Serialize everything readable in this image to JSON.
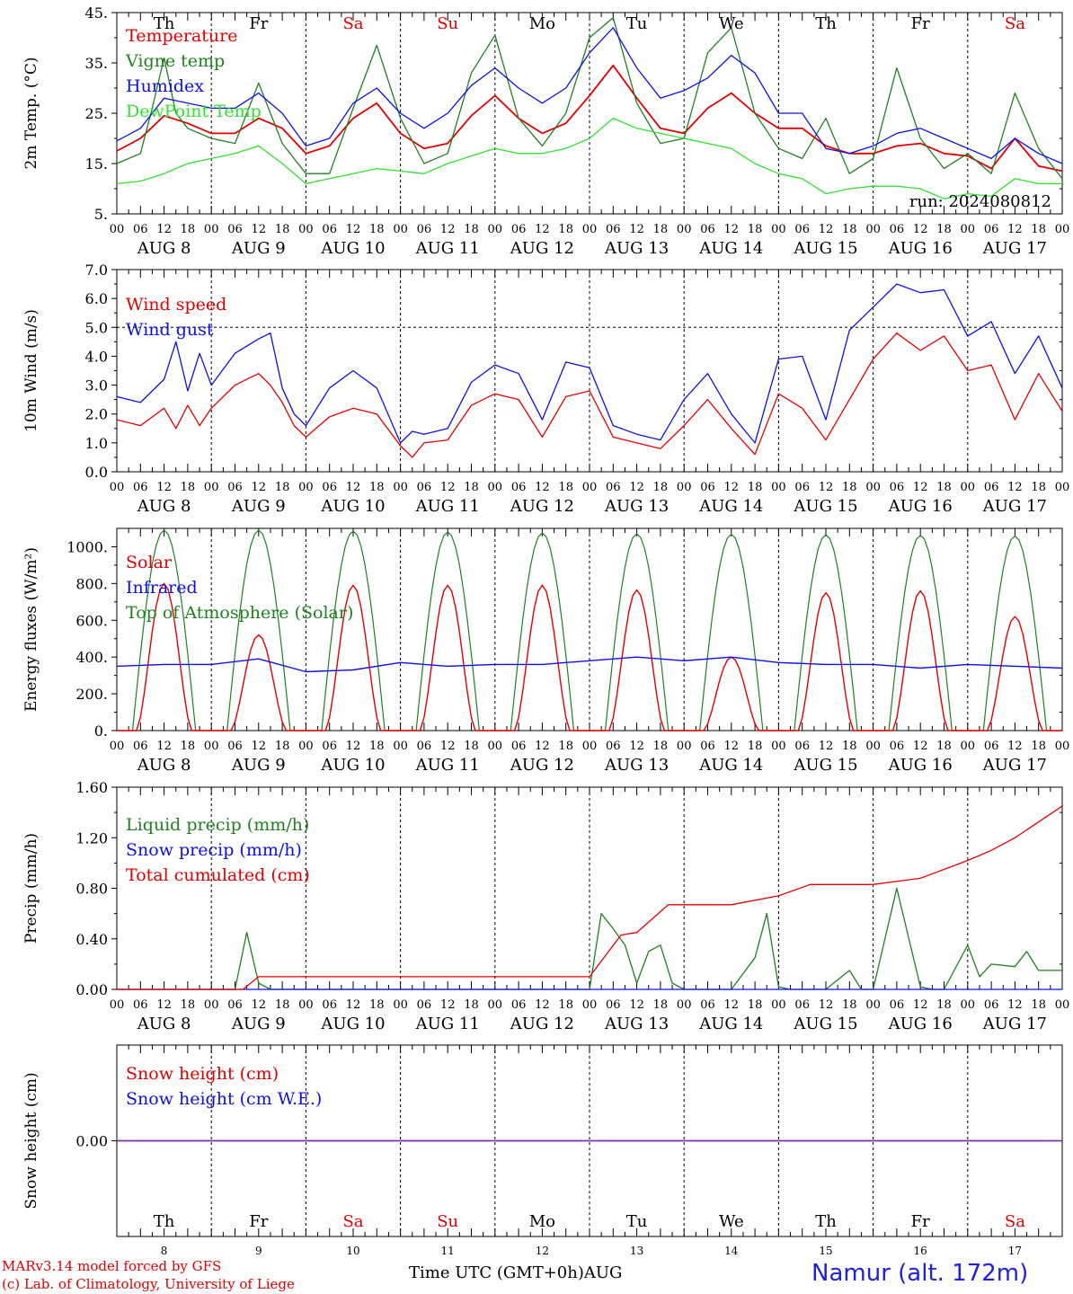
{
  "days": [
    {
      "name": "Th",
      "date": "8",
      "weekend": false
    },
    {
      "name": "Fr",
      "date": "9",
      "weekend": false
    },
    {
      "name": "Sa",
      "date": "10",
      "weekend": true
    },
    {
      "name": "Su",
      "date": "11",
      "weekend": true
    },
    {
      "name": "Mo",
      "date": "12",
      "weekend": false
    },
    {
      "name": "Tu",
      "date": "13",
      "weekend": false
    },
    {
      "name": "We",
      "date": "14",
      "weekend": false
    },
    {
      "name": "Th",
      "date": "15",
      "weekend": false
    },
    {
      "name": "Fr",
      "date": "16",
      "weekend": false
    },
    {
      "name": "Sa",
      "date": "17",
      "weekend": true
    }
  ],
  "hour_ticks": [
    "00",
    "06",
    "12",
    "18"
  ],
  "final_tick": "00",
  "month_label": "AUG",
  "colors": {
    "red": "#e00000",
    "green": "#208020",
    "blue": "#1010e0",
    "lightgreen": "#30e030",
    "purple": "#8030a0",
    "weekend": "#e00000",
    "axis": "#000000"
  },
  "footer": {
    "credit_line1": "MARv3.14 model forced by GFS",
    "credit_line2": "(c) Lab. of Climatology, University of Liege",
    "x_title": "Time UTC (GMT+0h)",
    "x_month": "AUG",
    "station": "Namur (alt. 172m)"
  },
  "chart_data": [
    {
      "id": "temperature",
      "type": "line",
      "ylabel": "2m Temp. (°C)",
      "ylim": [
        5,
        45
      ],
      "yticks": [
        5,
        15,
        25,
        35,
        45
      ],
      "ytick_labels": [
        "5.",
        "15.",
        "25.",
        "35.",
        "45."
      ],
      "annotation": "run: 2024080812",
      "x_unit": "hours since Aug 8 00 UTC",
      "series": [
        {
          "name": "Temperature",
          "color": "red",
          "x": [
            0,
            6,
            12,
            18,
            24,
            30,
            36,
            42,
            48,
            54,
            60,
            66,
            72,
            78,
            84,
            90,
            96,
            102,
            108,
            114,
            120,
            126,
            132,
            138,
            144,
            150,
            156,
            162,
            168,
            174,
            180,
            186,
            192,
            198,
            204,
            210,
            216,
            222,
            228,
            234,
            240
          ],
          "values": [
            17.5,
            20,
            24.5,
            23,
            21,
            21,
            24,
            22,
            17,
            18.5,
            24,
            27,
            21,
            18,
            19,
            24.5,
            28.5,
            24,
            21,
            23,
            28.5,
            34.5,
            28,
            22,
            21,
            26,
            29,
            25,
            22,
            22,
            18.5,
            17,
            17,
            18.5,
            19,
            17,
            16.5,
            14,
            20,
            14.5,
            13.5
          ]
        },
        {
          "name": "Vigne temp",
          "color": "green",
          "x": [
            0,
            6,
            9,
            12,
            15,
            18,
            24,
            30,
            36,
            42,
            48,
            54,
            60,
            66,
            72,
            78,
            84,
            90,
            96,
            102,
            108,
            114,
            120,
            126,
            132,
            138,
            144,
            150,
            156,
            162,
            168,
            174,
            180,
            186,
            192,
            198,
            204,
            210,
            216,
            222,
            228,
            234,
            240
          ],
          "values": [
            15,
            17,
            26,
            36,
            25,
            22,
            20,
            19,
            31,
            19,
            13,
            13,
            26,
            38.5,
            24,
            15,
            17,
            33,
            40.5,
            24,
            18.5,
            25,
            40,
            44,
            27,
            19,
            20,
            37,
            42,
            25,
            18,
            16,
            24,
            13,
            16,
            34,
            20,
            14,
            17,
            13,
            29,
            18,
            12
          ]
        },
        {
          "name": "Humidex",
          "color": "blue",
          "x": [
            0,
            6,
            12,
            18,
            24,
            30,
            36,
            42,
            48,
            54,
            60,
            66,
            72,
            78,
            84,
            90,
            96,
            102,
            108,
            114,
            120,
            126,
            132,
            138,
            144,
            150,
            156,
            162,
            168,
            174,
            180,
            186,
            192,
            198,
            204,
            210,
            216,
            222,
            228,
            234,
            240
          ],
          "values": [
            19.5,
            22,
            28,
            27,
            26,
            26,
            29,
            25,
            18.5,
            20,
            27,
            30,
            25,
            22,
            25,
            30.5,
            34,
            30,
            27,
            30,
            37,
            42,
            34,
            28,
            29.5,
            32,
            36.5,
            33,
            25,
            25,
            18,
            17,
            18.5,
            21,
            22,
            20,
            18,
            16,
            20,
            17,
            15
          ]
        },
        {
          "name": "DewPoint Temp",
          "color": "lightgreen",
          "x": [
            0,
            6,
            12,
            18,
            24,
            30,
            36,
            42,
            48,
            54,
            60,
            66,
            72,
            78,
            84,
            90,
            96,
            102,
            108,
            114,
            120,
            126,
            132,
            138,
            144,
            150,
            156,
            162,
            168,
            174,
            180,
            186,
            192,
            198,
            204,
            210,
            216,
            222,
            228,
            234,
            240
          ],
          "values": [
            11,
            11.5,
            13,
            15,
            16,
            17,
            18.5,
            15,
            11,
            12,
            13,
            14,
            13.5,
            13,
            15,
            16.5,
            18,
            17,
            17,
            18,
            20,
            24,
            22,
            21,
            20,
            19,
            18,
            15,
            13,
            12,
            9,
            10,
            10.5,
            10.5,
            10,
            8,
            9,
            8.5,
            12,
            11,
            11
          ]
        }
      ]
    },
    {
      "id": "wind",
      "type": "line",
      "ylabel": "10m Wind (m/s)",
      "ylim": [
        0,
        7
      ],
      "yticks": [
        0,
        1,
        2,
        3,
        4,
        5,
        6,
        7
      ],
      "ytick_labels": [
        "0.0",
        "1.0",
        "2.0",
        "3.0",
        "4.0",
        "5.0",
        "6.0",
        "7.0"
      ],
      "reference_line": 5,
      "x_unit": "hours since Aug 8 00 UTC",
      "series": [
        {
          "name": "Wind speed",
          "color": "red",
          "x": [
            0,
            6,
            12,
            15,
            18,
            21,
            24,
            30,
            36,
            39,
            42,
            45,
            48,
            54,
            60,
            66,
            72,
            75,
            78,
            84,
            90,
            96,
            102,
            108,
            114,
            120,
            126,
            132,
            138,
            144,
            150,
            156,
            162,
            168,
            174,
            180,
            186,
            192,
            198,
            204,
            210,
            216,
            222,
            228,
            234,
            240
          ],
          "values": [
            1.8,
            1.6,
            2.2,
            1.5,
            2.3,
            1.6,
            2.2,
            3.0,
            3.4,
            3.0,
            2.4,
            1.6,
            1.2,
            1.9,
            2.2,
            2.0,
            0.9,
            0.5,
            1.0,
            1.1,
            2.3,
            2.7,
            2.5,
            1.2,
            2.6,
            2.8,
            1.2,
            1.0,
            0.8,
            1.6,
            2.5,
            1.5,
            0.6,
            2.7,
            2.2,
            1.1,
            2.5,
            3.9,
            4.8,
            4.2,
            4.7,
            3.5,
            3.7,
            1.8,
            3.4,
            2.1
          ]
        },
        {
          "name": "Wind gust",
          "color": "blue",
          "x": [
            0,
            6,
            12,
            15,
            18,
            21,
            24,
            30,
            36,
            39,
            42,
            45,
            48,
            54,
            60,
            66,
            72,
            75,
            78,
            84,
            90,
            96,
            102,
            108,
            114,
            120,
            126,
            132,
            138,
            144,
            150,
            156,
            162,
            168,
            174,
            180,
            186,
            192,
            198,
            204,
            210,
            216,
            222,
            228,
            234,
            240
          ],
          "values": [
            2.6,
            2.4,
            3.2,
            4.5,
            2.8,
            4.1,
            3.0,
            4.1,
            4.6,
            4.8,
            2.9,
            2.0,
            1.6,
            2.9,
            3.5,
            2.9,
            1.0,
            1.4,
            1.3,
            1.5,
            3.1,
            3.7,
            3.4,
            1.8,
            3.8,
            3.6,
            1.6,
            1.3,
            1.1,
            2.5,
            3.4,
            2.0,
            1.0,
            3.9,
            4.0,
            1.8,
            4.9,
            5.7,
            6.5,
            6.2,
            6.3,
            4.7,
            5.2,
            3.4,
            4.7,
            2.9
          ]
        }
      ]
    },
    {
      "id": "energy",
      "type": "line",
      "ylabel": "Energy fluxes (W/m²)",
      "ylim": [
        0,
        1100
      ],
      "yticks": [
        0,
        200,
        400,
        600,
        800,
        1000
      ],
      "ytick_labels": [
        "0.",
        "200.",
        "400.",
        "600.",
        "800.",
        "1000."
      ],
      "x_unit": "hours since Aug 8 00 UTC",
      "daily_peak_top_of_atmosphere": [
        1090,
        1090,
        1085,
        1080,
        1075,
        1070,
        1068,
        1065,
        1062,
        1058
      ],
      "daily_peak_solar": [
        800,
        520,
        790,
        790,
        790,
        765,
        400,
        750,
        760,
        620
      ],
      "series": [
        {
          "name": "Solar",
          "color": "red"
        },
        {
          "name": "Infrared",
          "color": "blue",
          "x": [
            0,
            12,
            24,
            36,
            48,
            60,
            72,
            84,
            96,
            108,
            120,
            132,
            144,
            156,
            168,
            180,
            192,
            204,
            216,
            228,
            240
          ],
          "values": [
            350,
            360,
            360,
            390,
            320,
            330,
            370,
            350,
            360,
            360,
            380,
            400,
            380,
            400,
            370,
            360,
            360,
            340,
            360,
            350,
            340
          ]
        },
        {
          "name": "Top of Atmosphere (Solar)",
          "color": "green"
        }
      ]
    },
    {
      "id": "precip",
      "type": "line",
      "ylabel": "Precip (mm/h)",
      "ylim": [
        0,
        1.6
      ],
      "yticks": [
        0,
        0.4,
        0.8,
        1.2,
        1.6
      ],
      "ytick_labels": [
        "0.00",
        "0.40",
        "0.80",
        "1.20",
        "1.60"
      ],
      "x_unit": "hours since Aug 8 00 UTC",
      "series": [
        {
          "name": "Liquid precip (mm/h)",
          "color": "green",
          "x": [
            0,
            30,
            33,
            36,
            39,
            42,
            120,
            123,
            126,
            129,
            132,
            135,
            138,
            141,
            144,
            150,
            156,
            162,
            165,
            168,
            171,
            174,
            180,
            186,
            189,
            192,
            198,
            204,
            207,
            210,
            216,
            219,
            222,
            228,
            231,
            234,
            240
          ],
          "values": [
            0,
            0,
            0.45,
            0.05,
            0,
            0,
            0,
            0.6,
            0.48,
            0.35,
            0.05,
            0.3,
            0.35,
            0.05,
            0,
            0,
            0,
            0.25,
            0.6,
            0.02,
            0,
            0,
            0,
            0.15,
            0,
            0,
            0.8,
            0.02,
            0,
            0,
            0.35,
            0.1,
            0.2,
            0.18,
            0.3,
            0.15,
            0.15
          ]
        },
        {
          "name": "Snow precip (mm/h)",
          "color": "blue",
          "x": [
            0,
            240
          ],
          "values": [
            0,
            0
          ]
        },
        {
          "name": "Total cumulated (cm)",
          "color": "red",
          "x": [
            0,
            32,
            36,
            48,
            96,
            120,
            128,
            132,
            140,
            156,
            168,
            176,
            180,
            192,
            204,
            216,
            222,
            228,
            240
          ],
          "values": [
            0,
            0,
            0.1,
            0.1,
            0.1,
            0.1,
            0.43,
            0.45,
            0.67,
            0.67,
            0.74,
            0.83,
            0.83,
            0.83,
            0.88,
            1.02,
            1.1,
            1.2,
            1.45
          ]
        }
      ]
    },
    {
      "id": "snow",
      "type": "line",
      "ylabel": "Snow height (cm)",
      "yticks": [
        0
      ],
      "ytick_labels": [
        "0.00"
      ],
      "x_unit": "hours since Aug 8 00 UTC",
      "series": [
        {
          "name": "Snow height (cm)",
          "color": "red",
          "x": [
            0,
            240
          ],
          "values": [
            0,
            0
          ]
        },
        {
          "name": "Snow height (cm W.E.)",
          "color": "blue",
          "x": [
            0,
            240
          ],
          "values": [
            0,
            0
          ]
        }
      ]
    }
  ]
}
